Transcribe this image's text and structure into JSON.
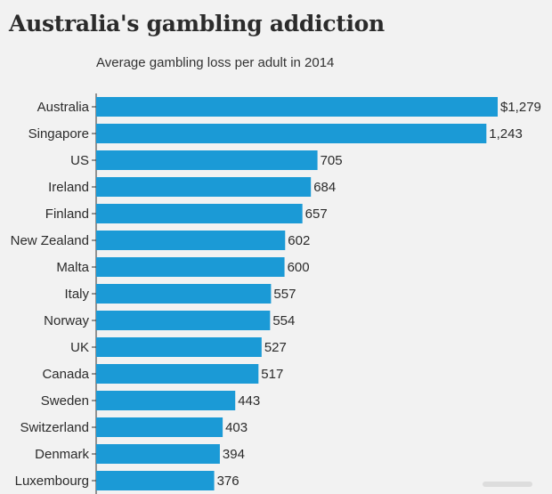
{
  "chart_data": {
    "type": "bar",
    "orientation": "horizontal",
    "title": "Australia's gambling addiction",
    "subtitle": "Average gambling loss per adult in 2014",
    "categories": [
      "Australia",
      "Singapore",
      "US",
      "Ireland",
      "Finland",
      "New Zealand",
      "Malta",
      "Italy",
      "Norway",
      "UK",
      "Canada",
      "Sweden",
      "Switzerland",
      "Denmark",
      "Luxembourg"
    ],
    "values": [
      1279,
      1243,
      705,
      684,
      657,
      602,
      600,
      557,
      554,
      527,
      517,
      443,
      403,
      394,
      376
    ],
    "value_labels": [
      "$1,279",
      "1,243",
      "705",
      "684",
      "657",
      "602",
      "600",
      "557",
      "554",
      "527",
      "517",
      "443",
      "403",
      "394",
      "376"
    ],
    "xlim": [
      0,
      1279
    ],
    "bar_color": "#1b9ad6",
    "grid": false,
    "legend": "none"
  }
}
